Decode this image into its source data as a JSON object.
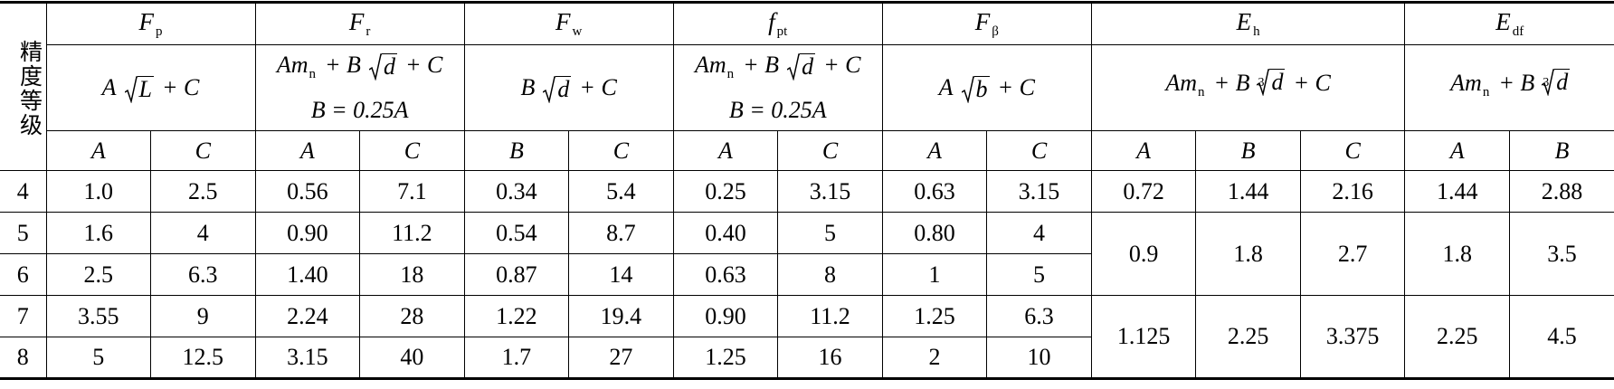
{
  "corner": "精度等级",
  "groups": [
    {
      "symbol": "F",
      "sub": "p",
      "formula": [
        [
          {
            "t": "A"
          },
          {
            "root": "L"
          },
          {
            "t": "+ C"
          }
        ]
      ],
      "coefficients": [
        "A",
        "C"
      ]
    },
    {
      "symbol": "F",
      "sub": "r",
      "formula": [
        [
          {
            "t": "Am"
          },
          {
            "sub": "n"
          },
          {
            "t": "+ B"
          },
          {
            "root": "d"
          },
          {
            "t": "+ C"
          }
        ],
        [
          {
            "t": "B = 0.25A"
          }
        ]
      ],
      "coefficients": [
        "A",
        "C"
      ]
    },
    {
      "symbol": "F",
      "sub": "w",
      "formula": [
        [
          {
            "t": "B"
          },
          {
            "root": "d"
          },
          {
            "t": "+ C"
          }
        ]
      ],
      "coefficients": [
        "B",
        "C"
      ]
    },
    {
      "symbol": "f",
      "sub": "pt",
      "formula": [
        [
          {
            "t": "Am"
          },
          {
            "sub": "n"
          },
          {
            "t": "+ B"
          },
          {
            "root": "d"
          },
          {
            "t": "+ C"
          }
        ],
        [
          {
            "t": "B = 0.25A"
          }
        ]
      ],
      "coefficients": [
        "A",
        "C"
      ]
    },
    {
      "symbol": "F",
      "sub": "β",
      "formula": [
        [
          {
            "t": "A"
          },
          {
            "root": "b"
          },
          {
            "t": "+ C"
          }
        ]
      ],
      "coefficients": [
        "A",
        "C"
      ]
    },
    {
      "symbol": "E",
      "sub": "h",
      "formula": [
        [
          {
            "t": "Am"
          },
          {
            "sub": "n"
          },
          {
            "t": "+ B"
          },
          {
            "root": "d",
            "index": "3"
          },
          {
            "t": "+ C"
          }
        ]
      ],
      "coefficients": [
        "A",
        "B",
        "C"
      ]
    },
    {
      "symbol": "E",
      "sub": "df",
      "formula": [
        [
          {
            "t": "Am"
          },
          {
            "sub": "n"
          },
          {
            "t": "+ B"
          },
          {
            "root": "d",
            "index": "3"
          }
        ]
      ],
      "coefficients": [
        "A",
        "B"
      ]
    }
  ],
  "rows": [
    {
      "grade": "4",
      "cells": [
        "1.0",
        "2.5",
        "0.56",
        "7.1",
        "0.34",
        "5.4",
        "0.25",
        "3.15",
        "0.63",
        "3.15",
        "0.72",
        "1.44",
        "2.16",
        "1.44",
        "2.88"
      ]
    },
    {
      "grade": "5",
      "cells": [
        "1.6",
        "4",
        "0.90",
        "11.2",
        "0.54",
        "8.7",
        "0.40",
        "5",
        "0.80",
        "4",
        "0.9",
        "1.8",
        "2.7",
        "1.8",
        "3.5"
      ]
    },
    {
      "grade": "6",
      "cells": [
        "2.5",
        "6.3",
        "1.40",
        "18",
        "0.87",
        "14",
        "0.63",
        "8",
        "1",
        "5"
      ]
    },
    {
      "grade": "7",
      "cells": [
        "3.55",
        "9",
        "2.24",
        "28",
        "1.22",
        "19.4",
        "0.90",
        "11.2",
        "1.25",
        "6.3",
        "1.125",
        "2.25",
        "3.375",
        "2.25",
        "4.5"
      ]
    },
    {
      "grade": "8",
      "cells": [
        "5",
        "12.5",
        "3.15",
        "40",
        "1.7",
        "27",
        "1.25",
        "16",
        "2",
        "10"
      ]
    }
  ]
}
